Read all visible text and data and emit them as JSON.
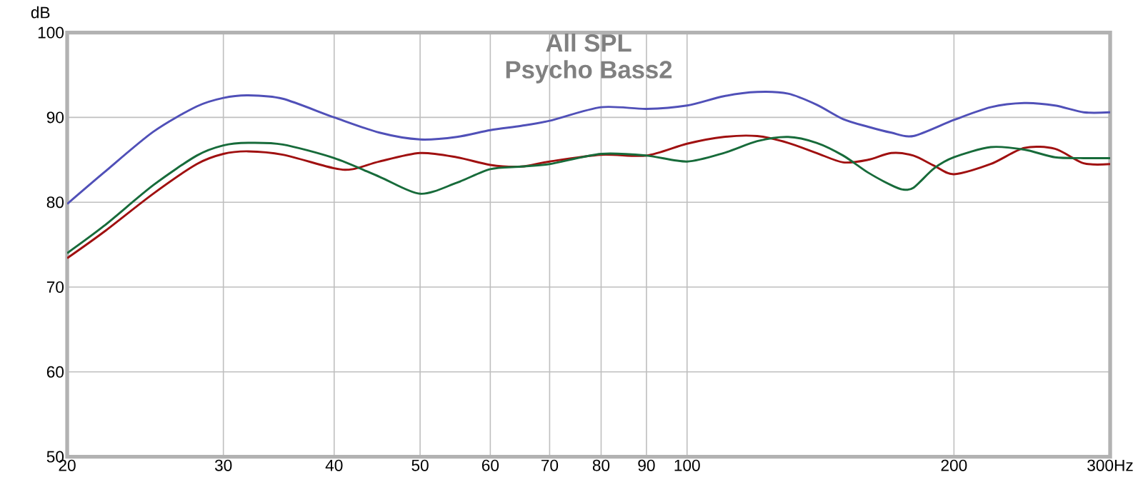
{
  "chart_data": {
    "type": "line",
    "title": "All SPL",
    "subtitle": "Psycho Bass2",
    "ylabel": "dB",
    "log": "x",
    "grid": true,
    "marker": "none",
    "line_style": "solid",
    "xlim": [
      20,
      300
    ],
    "ylim": [
      50,
      100
    ],
    "xticks": [
      20,
      30,
      40,
      50,
      60,
      70,
      80,
      90,
      100,
      200,
      {
        "value": 300,
        "label": "300Hz"
      }
    ],
    "yticks": [
      50,
      60,
      70,
      80,
      90,
      100
    ],
    "series": [
      {
        "color": "#5050b8",
        "x": [
          20,
          22,
          25,
          28,
          30,
          32,
          35,
          40,
          45,
          50,
          55,
          60,
          65,
          70,
          80,
          90,
          100,
          110,
          120,
          130,
          140,
          150,
          160,
          170,
          180,
          200,
          220,
          240,
          260,
          280,
          300
        ],
        "values": [
          79.8,
          83.5,
          88.3,
          91.3,
          92.3,
          92.6,
          92.2,
          90.0,
          88.2,
          87.4,
          87.7,
          88.5,
          89.0,
          89.6,
          91.2,
          91.0,
          91.4,
          92.5,
          93.0,
          92.8,
          91.5,
          89.8,
          88.9,
          88.2,
          87.8,
          89.7,
          91.2,
          91.7,
          91.4,
          90.6,
          90.6
        ]
      },
      {
        "color": "#a01010",
        "x": [
          20,
          22,
          25,
          28,
          30,
          32,
          35,
          40,
          42,
          45,
          50,
          55,
          60,
          65,
          70,
          80,
          90,
          100,
          110,
          120,
          130,
          140,
          150,
          160,
          170,
          180,
          190,
          200,
          220,
          240,
          260,
          280,
          300
        ],
        "values": [
          73.4,
          76.5,
          81.0,
          84.5,
          85.7,
          86.0,
          85.6,
          84.0,
          83.9,
          84.8,
          85.8,
          85.3,
          84.4,
          84.2,
          84.8,
          85.6,
          85.5,
          86.9,
          87.7,
          87.8,
          87.0,
          85.8,
          84.7,
          85.0,
          85.8,
          85.5,
          84.3,
          83.3,
          84.5,
          86.4,
          86.3,
          84.6,
          84.5
        ]
      },
      {
        "color": "#176b3a",
        "x": [
          20,
          22,
          25,
          28,
          30,
          32,
          35,
          40,
          45,
          50,
          55,
          60,
          65,
          70,
          80,
          90,
          100,
          110,
          120,
          130,
          140,
          150,
          160,
          170,
          175,
          180,
          190,
          200,
          220,
          240,
          260,
          280,
          300
        ],
        "values": [
          74.0,
          77.2,
          82.0,
          85.5,
          86.7,
          87.0,
          86.8,
          85.2,
          83.0,
          81.0,
          82.3,
          83.9,
          84.2,
          84.5,
          85.7,
          85.5,
          84.8,
          85.8,
          87.2,
          87.7,
          87.0,
          85.5,
          83.5,
          82.0,
          81.5,
          81.7,
          84.0,
          85.3,
          86.5,
          86.2,
          85.3,
          85.2,
          85.2
        ]
      }
    ]
  }
}
